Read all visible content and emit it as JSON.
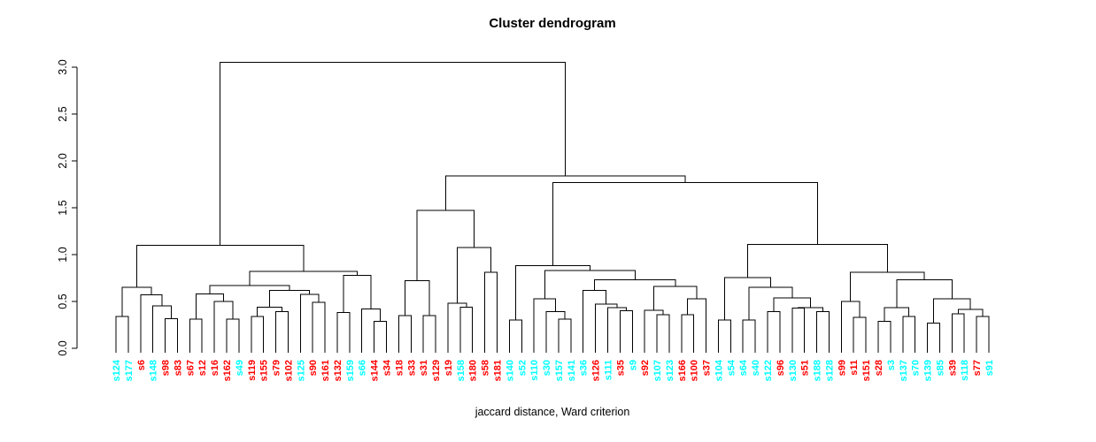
{
  "title": "Cluster dendrogram",
  "caption": "jaccard distance, Ward criterion",
  "colors": {
    "group_red": "#FF0000",
    "group_cyan": "#00FFFF",
    "line": "#000000",
    "background": "#FFFFFF"
  },
  "y_axis": {
    "tick_labels": [
      "0.0",
      "0.5",
      "1.0",
      "1.5",
      "2.0",
      "2.5",
      "3.0"
    ],
    "tick_values": [
      0,
      0.5,
      1.0,
      1.5,
      2.0,
      2.5,
      3.0
    ]
  },
  "chart_data": {
    "type": "dendrogram",
    "title": "Cluster dendrogram",
    "xlabel": "jaccard distance, Ward criterion",
    "ylabel": "",
    "ylim": [
      0,
      3
    ],
    "grid": false,
    "leaf_label_orientation": "vertical",
    "leaves": [
      [
        "s124",
        "cyan"
      ],
      [
        "s177",
        "cyan"
      ],
      [
        "s6",
        "red"
      ],
      [
        "s148",
        "cyan"
      ],
      [
        "s98",
        "red"
      ],
      [
        "s83",
        "red"
      ],
      [
        "s67",
        "red"
      ],
      [
        "s12",
        "red"
      ],
      [
        "s16",
        "red"
      ],
      [
        "s162",
        "red"
      ],
      [
        "s49",
        "cyan"
      ],
      [
        "s119",
        "red"
      ],
      [
        "s155",
        "red"
      ],
      [
        "s79",
        "red"
      ],
      [
        "s102",
        "red"
      ],
      [
        "s125",
        "cyan"
      ],
      [
        "s90",
        "red"
      ],
      [
        "s161",
        "red"
      ],
      [
        "s132",
        "red"
      ],
      [
        "s159",
        "cyan"
      ],
      [
        "s66",
        "cyan"
      ],
      [
        "s144",
        "red"
      ],
      [
        "s34",
        "red"
      ],
      [
        "s18",
        "red"
      ],
      [
        "s33",
        "red"
      ],
      [
        "s31",
        "red"
      ],
      [
        "s129",
        "red"
      ],
      [
        "s19",
        "red"
      ],
      [
        "s158",
        "cyan"
      ],
      [
        "s180",
        "red"
      ],
      [
        "s58",
        "red"
      ],
      [
        "s181",
        "red"
      ],
      [
        "s140",
        "cyan"
      ],
      [
        "s52",
        "cyan"
      ],
      [
        "s110",
        "cyan"
      ],
      [
        "s30",
        "cyan"
      ],
      [
        "s157",
        "cyan"
      ],
      [
        "s141",
        "cyan"
      ],
      [
        "s36",
        "cyan"
      ],
      [
        "s126",
        "red"
      ],
      [
        "s111",
        "cyan"
      ],
      [
        "s35",
        "red"
      ],
      [
        "s9",
        "cyan"
      ],
      [
        "s92",
        "red"
      ],
      [
        "s107",
        "cyan"
      ],
      [
        "s123",
        "cyan"
      ],
      [
        "s166",
        "red"
      ],
      [
        "s100",
        "red"
      ],
      [
        "s37",
        "red"
      ],
      [
        "s104",
        "cyan"
      ],
      [
        "s54",
        "cyan"
      ],
      [
        "s64",
        "cyan"
      ],
      [
        "s40",
        "cyan"
      ],
      [
        "s122",
        "cyan"
      ],
      [
        "s96",
        "red"
      ],
      [
        "s130",
        "cyan"
      ],
      [
        "s51",
        "red"
      ],
      [
        "s188",
        "cyan"
      ],
      [
        "s128",
        "cyan"
      ],
      [
        "s99",
        "red"
      ],
      [
        "s11",
        "red"
      ],
      [
        "s151",
        "red"
      ],
      [
        "s28",
        "red"
      ],
      [
        "s3",
        "cyan"
      ],
      [
        "s137",
        "cyan"
      ],
      [
        "s70",
        "cyan"
      ],
      [
        "s139",
        "cyan"
      ],
      [
        "s85",
        "cyan"
      ],
      [
        "s39",
        "red"
      ],
      [
        "s118",
        "cyan"
      ],
      [
        "s77",
        "red"
      ],
      [
        "s91",
        "cyan"
      ]
    ],
    "tree_format": "[merge_height, left_child, right_child] ; integer = leaf index",
    "tree": [
      3.05,
      [
        1.1,
        [
          0.65,
          [
            0.34,
            0,
            1
          ],
          [
            0.57,
            2,
            [
              0.455,
              3,
              [
                0.315,
                4,
                5
              ]
            ]
          ]
        ],
        [
          0.82,
          [
            0.67,
            [
              0.58,
              [
                0.31,
                6,
                7
              ],
              [
                0.5,
                8,
                [
                  0.31,
                  9,
                  10
                ]
              ]
            ],
            [
              0.62,
              [
                0.44,
                [
                  0.34,
                  11,
                  12
                ],
                [
                  0.39,
                  13,
                  14
                ]
              ],
              [
                0.575,
                15,
                [
                  0.49,
                  16,
                  17
                ]
              ]
            ]
          ],
          [
            0.78,
            [
              0.38,
              18,
              19
            ],
            [
              0.42,
              20,
              [
                0.29,
                21,
                22
              ]
            ]
          ]
        ]
      ],
      [
        1.84,
        [
          1.47,
          [
            0.72,
            [
              0.35,
              23,
              24
            ],
            [
              0.35,
              25,
              26
            ]
          ],
          [
            1.075,
            [
              0.48,
              27,
              [
                0.44,
                28,
                29
              ]
            ],
            [
              0.81,
              30,
              31
            ]
          ]
        ],
        [
          1.77,
          [
            0.88,
            [
              0.3,
              32,
              33
            ],
            [
              0.83,
              [
                0.53,
                34,
                [
                  0.39,
                  35,
                  [
                    0.31,
                    36,
                    37
                  ]
                ]
              ],
              [
                0.73,
                [
                  0.62,
                  38,
                  [
                    0.47,
                    39,
                    [
                      0.435,
                      40,
                      [
                        0.4,
                        41,
                        42
                      ]
                    ]
                  ]
                ],
                [
                  0.66,
                  [
                    0.405,
                    43,
                    [
                      0.36,
                      44,
                      45
                    ]
                  ],
                  [
                    0.53,
                    [
                      0.36,
                      46,
                      47
                    ],
                    48
                  ]
                ]
              ]
            ]
          ],
          [
            1.11,
            [
              0.755,
              [
                0.3,
                49,
                50
              ],
              [
                0.65,
                [
                  0.3,
                  51,
                  52
                ],
                [
                  0.54,
                  [
                    0.39,
                    53,
                    54
                  ],
                  [
                    0.435,
                    [
                      0.43,
                      55,
                      56
                    ],
                    [
                      0.39,
                      57,
                      58
                    ]
                  ]
                ]
              ]
            ],
            [
              0.81,
              [
                0.5,
                59,
                [
                  0.33,
                  60,
                  61
                ]
              ],
              [
                0.73,
                [
                  0.435,
                  [
                    0.29,
                    62,
                    63
                  ],
                  [
                    0.34,
                    64,
                    65
                  ]
                ],
                [
                  0.53,
                  [
                    0.27,
                    66,
                    67
                  ],
                  [
                    0.415,
                    [
                      0.37,
                      68,
                      69
                    ],
                    [
                      0.34,
                      70,
                      71
                    ]
                  ]
                ]
              ]
            ]
          ]
        ]
      ]
    ]
  }
}
